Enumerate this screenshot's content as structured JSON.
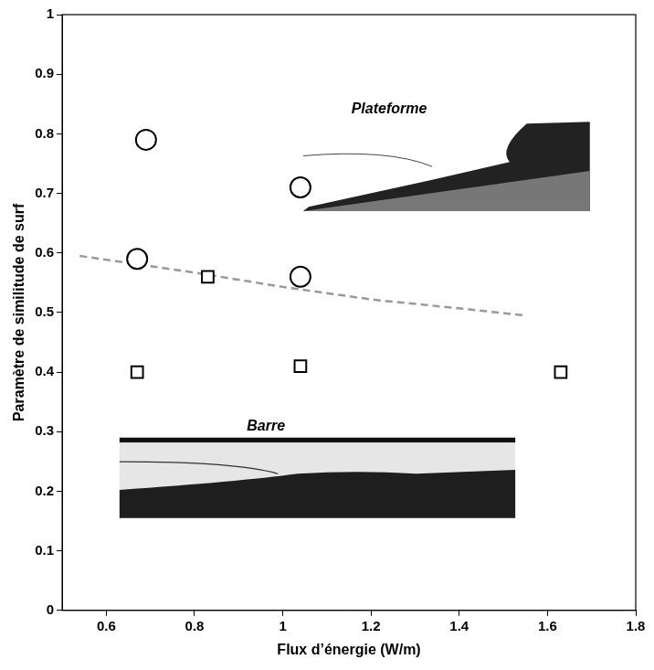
{
  "chart_data": {
    "type": "scatter",
    "x_label": "Flux d’énergie (W/m)",
    "y_label": "Paramètre de similitude de surf",
    "annotations": [
      "Plateforme",
      "Barre"
    ],
    "series": [
      {
        "type": "scatter",
        "marker": "circle",
        "color": "#000000",
        "x": [
          0.69,
          0.67,
          1.04,
          1.04
        ],
        "values": [
          0.79,
          0.59,
          0.71,
          0.56
        ]
      },
      {
        "type": "scatter",
        "marker": "square",
        "color": "#000000",
        "x": [
          0.83,
          0.67,
          1.04,
          1.63
        ],
        "values": [
          0.56,
          0.4,
          0.41,
          0.4
        ]
      },
      {
        "type": "line",
        "line_style": "dashed",
        "color": "#999999",
        "x": [
          0.54,
          0.8,
          1.0,
          1.2,
          1.4,
          1.55
        ],
        "values": [
          0.595,
          0.567,
          0.543,
          0.522,
          0.507,
          0.495
        ]
      }
    ],
    "xlim": [
      0.5,
      1.8
    ],
    "xticks": [
      0.6,
      0.8,
      1,
      1.2,
      1.4,
      1.6,
      1.8
    ],
    "ylim": [
      0,
      1
    ],
    "yticks": [
      0,
      0.1,
      0.2,
      0.3,
      0.4,
      0.5,
      0.6,
      0.7,
      0.8,
      0.9,
      1
    ],
    "grid": false
  }
}
